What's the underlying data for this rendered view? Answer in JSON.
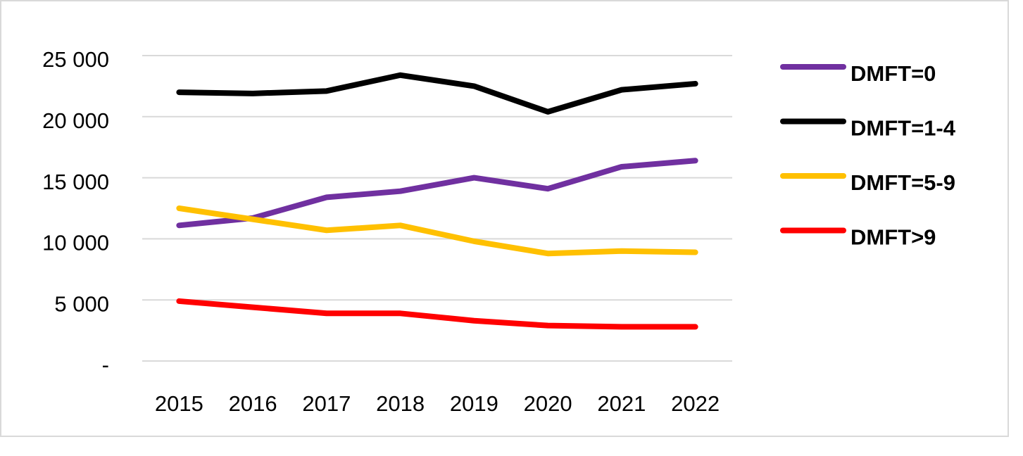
{
  "chart_data": {
    "type": "line",
    "categories": [
      "2015",
      "2016",
      "2017",
      "2018",
      "2019",
      "2020",
      "2021",
      "2022"
    ],
    "series": [
      {
        "name": "DMFT=0",
        "color": "#7030a0",
        "values": [
          11100,
          11700,
          13400,
          13900,
          15000,
          14100,
          15900,
          16400
        ]
      },
      {
        "name": "DMFT=1-4",
        "color": "#000000",
        "values": [
          22000,
          21900,
          22100,
          23400,
          22500,
          20400,
          22200,
          22700
        ]
      },
      {
        "name": "DMFT=5-9",
        "color": "#ffc000",
        "values": [
          12500,
          11600,
          10700,
          11100,
          9800,
          8800,
          9000,
          8900
        ]
      },
      {
        "name": "DMFT>9",
        "color": "#ff0000",
        "values": [
          4900,
          4400,
          3900,
          3900,
          3300,
          2900,
          2800,
          2800
        ]
      }
    ],
    "ylim": [
      0,
      25000
    ],
    "yticks": [
      {
        "value": 0,
        "label": "-"
      },
      {
        "value": 5000,
        "label": "5 000"
      },
      {
        "value": 10000,
        "label": "10 000"
      },
      {
        "value": 15000,
        "label": "15 000"
      },
      {
        "value": 20000,
        "label": "20 000"
      },
      {
        "value": 25000,
        "label": "25 000"
      }
    ],
    "grid": true,
    "legend": "right"
  }
}
